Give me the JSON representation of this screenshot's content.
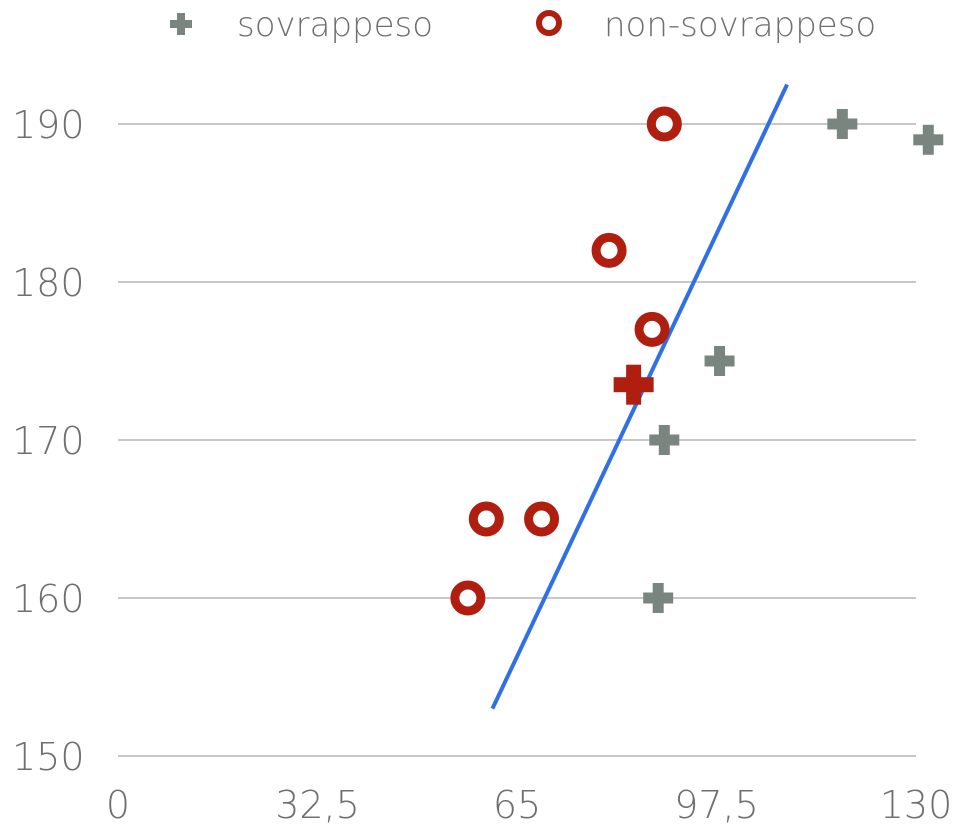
{
  "chart_data": {
    "type": "scatter",
    "xlim": [
      0,
      130
    ],
    "ylim": [
      150,
      190
    ],
    "x_ticks": [
      "0",
      "32,5",
      "65",
      "97,5",
      "130"
    ],
    "x_tick_values": [
      0,
      32.5,
      65,
      97.5,
      130
    ],
    "y_ticks": [
      "150",
      "160",
      "170",
      "180",
      "190"
    ],
    "y_tick_values": [
      150,
      160,
      170,
      180,
      190
    ],
    "grid": "horizontal",
    "legend_position": "top",
    "series": [
      {
        "name": "sovrappeso",
        "marker": "plus",
        "color": "#7a8580",
        "points": [
          {
            "x": 118,
            "y": 190
          },
          {
            "x": 132,
            "y": 189
          },
          {
            "x": 98,
            "y": 175
          },
          {
            "x": 89,
            "y": 170
          },
          {
            "x": 88,
            "y": 160
          }
        ]
      },
      {
        "name": "non-sovrappeso",
        "marker": "circle",
        "color": "#b01e0f",
        "points": [
          {
            "x": 89,
            "y": 190
          },
          {
            "x": 80,
            "y": 182
          },
          {
            "x": 87,
            "y": 177
          },
          {
            "x": 60,
            "y": 165
          },
          {
            "x": 69,
            "y": 165
          },
          {
            "x": 57,
            "y": 160
          }
        ]
      }
    ],
    "highlight_point": {
      "x": 84,
      "y": 173.5,
      "marker": "plus",
      "color": "#b01e0f"
    },
    "decision_line": {
      "x1": 61,
      "y1": 153,
      "x2": 109,
      "y2": 192.5,
      "color": "#2f6fe8"
    }
  }
}
